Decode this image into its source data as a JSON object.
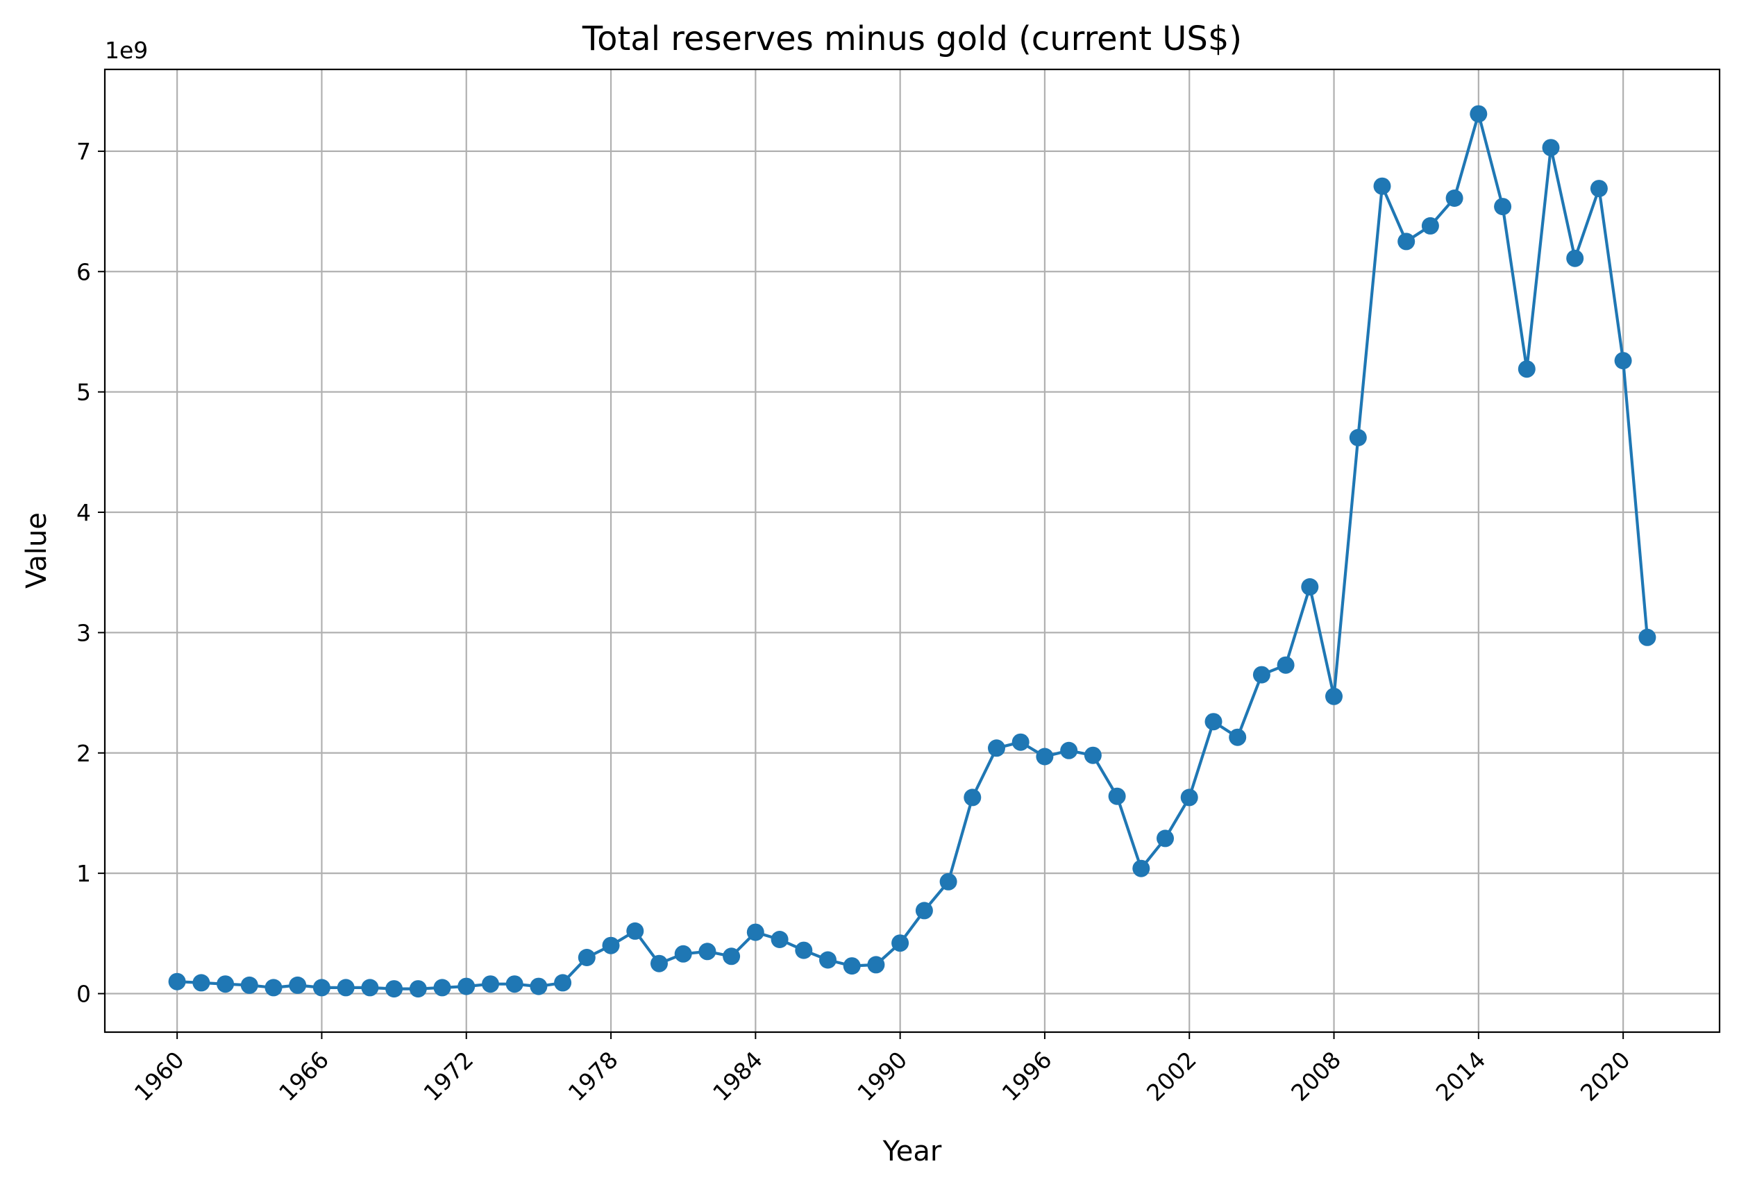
{
  "chart_data": {
    "type": "line",
    "title": "Total reserves minus gold (current US$)",
    "xlabel": "Year",
    "ylabel": "Value",
    "y_offset_label": "1e9",
    "x_ticks": [
      "1960",
      "1966",
      "1972",
      "1978",
      "1984",
      "1990",
      "1996",
      "2002",
      "2008",
      "2014",
      "2020"
    ],
    "y_ticks": [
      "0",
      "1",
      "2",
      "3",
      "4",
      "5",
      "6",
      "7"
    ],
    "xlim": [
      1957,
      2024
    ],
    "ylim": [
      -0.32,
      7.68
    ],
    "grid": true,
    "markers": true,
    "color": "#1f77b4",
    "series": [
      {
        "x": [
          1960,
          1961,
          1962,
          1963,
          1964,
          1965,
          1966,
          1967,
          1968,
          1969,
          1970,
          1971,
          1972,
          1973,
          1974,
          1975,
          1976,
          1977,
          1978,
          1979,
          1980,
          1981,
          1982,
          1983,
          1984,
          1985,
          1986,
          1987,
          1988,
          1989,
          1990,
          1991,
          1992,
          1993,
          1994,
          1995,
          1996,
          1997,
          1998,
          1999,
          2000,
          2001,
          2002,
          2003,
          2004,
          2005,
          2006,
          2007,
          2008,
          2009,
          2010,
          2011,
          2012,
          2013,
          2014,
          2015,
          2016,
          2017,
          2018,
          2019,
          2020,
          2021
        ],
        "values": [
          0.1,
          0.09,
          0.08,
          0.07,
          0.05,
          0.07,
          0.05,
          0.05,
          0.05,
          0.04,
          0.04,
          0.05,
          0.06,
          0.08,
          0.08,
          0.06,
          0.09,
          0.3,
          0.4,
          0.52,
          0.25,
          0.33,
          0.35,
          0.31,
          0.51,
          0.45,
          0.36,
          0.28,
          0.23,
          0.24,
          0.42,
          0.69,
          0.93,
          1.63,
          2.04,
          2.09,
          1.97,
          2.02,
          1.98,
          1.64,
          1.04,
          1.29,
          1.63,
          2.26,
          2.13,
          2.65,
          2.73,
          3.38,
          2.47,
          4.62,
          6.71,
          6.25,
          6.38,
          6.61,
          7.31,
          6.54,
          5.19,
          7.03,
          6.11,
          6.69,
          5.26,
          2.96
        ]
      }
    ]
  }
}
